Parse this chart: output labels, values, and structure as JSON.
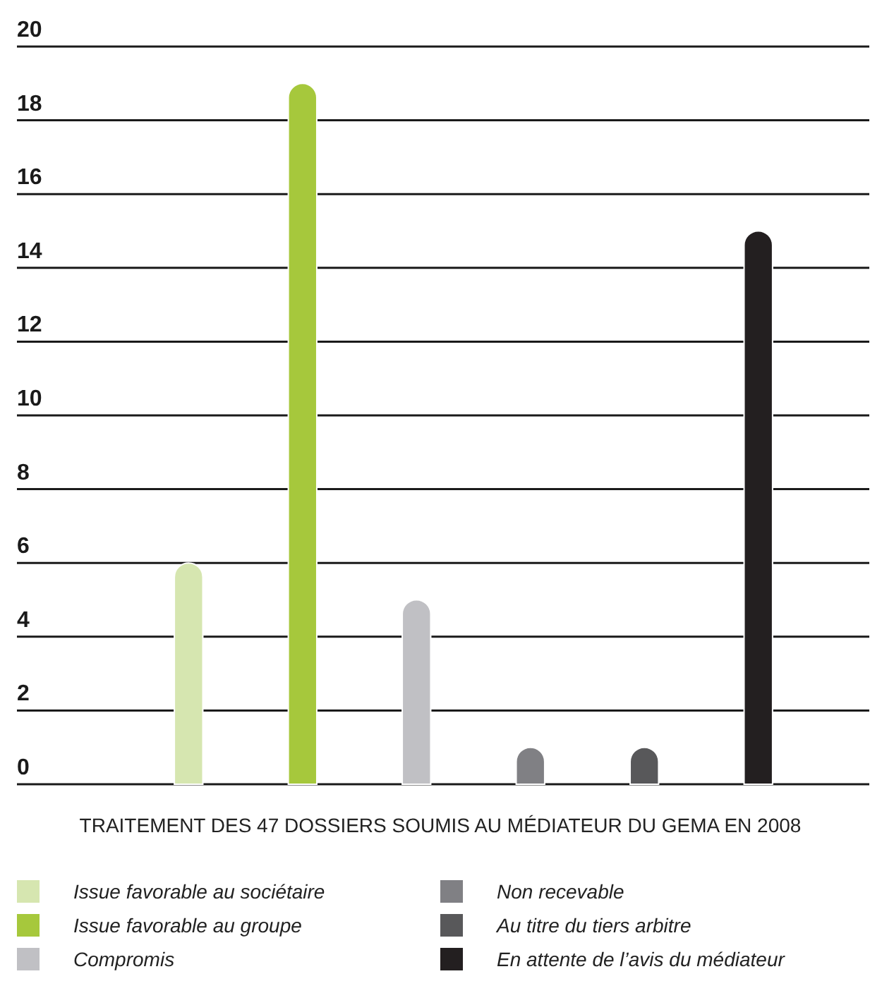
{
  "chart_data": {
    "type": "bar",
    "xlabel": "TRAITEMENT DES 47 DOSSIERS SOUMIS AU MÉDIATEUR DU GEMA EN 2008",
    "categories": [
      null,
      null,
      null,
      null,
      null,
      null
    ],
    "series": [
      {
        "name": "Issue favorable au sociétaire",
        "color": "#d6e6b0",
        "values": [
          6,
          null,
          null,
          null,
          null,
          null
        ]
      },
      {
        "name": "Issue favorable au groupe",
        "color": "#a6c83c",
        "values": [
          null,
          19,
          null,
          null,
          null,
          null
        ]
      },
      {
        "name": "Compromis",
        "color": "#c0c0c4",
        "values": [
          null,
          null,
          5,
          null,
          null,
          null
        ]
      },
      {
        "name": "Non recevable",
        "color": "#808084",
        "values": [
          null,
          null,
          null,
          1,
          null,
          null
        ]
      },
      {
        "name": "Au titre du tiers arbitre",
        "color": "#58585a",
        "values": [
          null,
          null,
          null,
          null,
          1,
          null
        ]
      },
      {
        "name": "En attente de l’avis du médiateur",
        "color": "#231f20",
        "values": [
          null,
          null,
          null,
          null,
          null,
          15
        ]
      }
    ],
    "ylim": [
      0,
      20
    ],
    "yticks": [
      0,
      2,
      4,
      6,
      8,
      10,
      12,
      14,
      16,
      18,
      20
    ],
    "stacked": true,
    "grid": "y",
    "legend": "bottom",
    "tick_labels": "y"
  }
}
